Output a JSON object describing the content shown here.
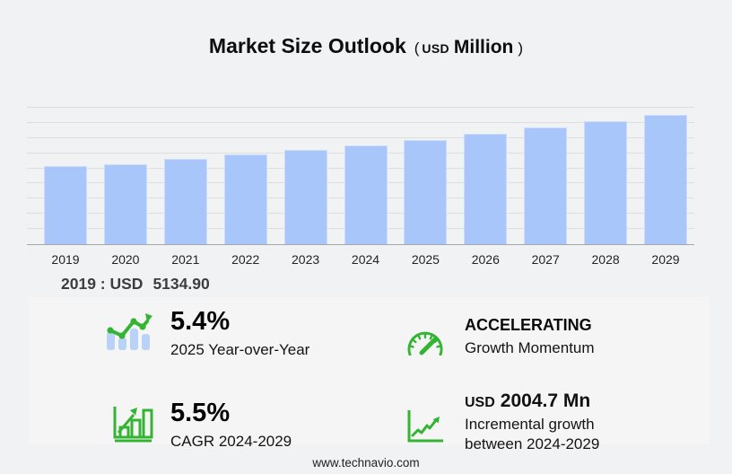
{
  "title": {
    "main": "Market Size Outlook",
    "paren_open": "(",
    "unit_currency": "USD",
    "unit": "Million",
    "paren_close": ")"
  },
  "chart_data": {
    "type": "bar",
    "title": "Market Size Outlook (USD Million)",
    "categories": [
      "2019",
      "2020",
      "2021",
      "2022",
      "2023",
      "2024",
      "2025",
      "2026",
      "2027",
      "2028",
      "2029"
    ],
    "values": [
      5134.9,
      5291,
      5604,
      5919,
      6214,
      6530,
      6883,
      7262,
      7698,
      8117,
      8535
    ],
    "ylabel": "",
    "xlabel": "",
    "ylim": [
      0,
      9650
    ],
    "gridline_step": 1000,
    "grid": true,
    "legend": false,
    "bar_color": "#a8c6fa",
    "annotation": "2019 : USD 5134.90"
  },
  "callout": {
    "prefix": "2019 : USD",
    "value": "5134.90"
  },
  "stats": {
    "yoy": {
      "value": "5.4%",
      "label": "2025 Year-over-Year",
      "icon": "bar-line-growth-icon"
    },
    "momentum": {
      "title": "ACCELERATING",
      "label": "Growth Momentum",
      "icon": "speedometer-icon"
    },
    "cagr": {
      "value": "5.5%",
      "label": "CAGR 2024-2029",
      "icon": "bar-chart-arrow-icon"
    },
    "incremental": {
      "currency": "USD",
      "value": "2004.7 Mn",
      "label_line1": "Incremental growth",
      "label_line2": "between 2024-2029",
      "icon": "line-chart-axes-icon"
    }
  },
  "footer": {
    "url": "www.technavio.com"
  },
  "colors": {
    "accent_green": "#33b533",
    "bar_blue": "#a8c6fa",
    "icon_bar_blue": "#b9d2f8",
    "gridline": "#dedee0",
    "panel_bg": "#f5f5f6",
    "page_bg": "#f1f2f4"
  }
}
